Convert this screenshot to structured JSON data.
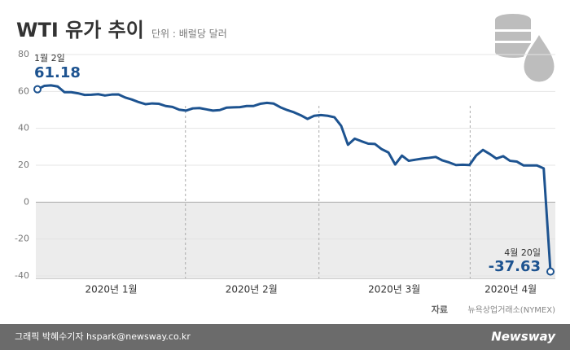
{
  "chart_data": {
    "type": "line",
    "title": "WTI 유가 추이",
    "subtitle": "단위 : 배럴당 달러",
    "x_labels": [
      "2020년 1월",
      "2020년 2월",
      "2020년 3월",
      "2020년 4월"
    ],
    "values": [
      61.18,
      63.0,
      63.3,
      62.7,
      59.6,
      59.6,
      59.0,
      58.1,
      58.2,
      58.5,
      57.8,
      58.3,
      58.4,
      56.7,
      55.6,
      54.2,
      53.1,
      53.5,
      53.3,
      52.1,
      51.6,
      50.1,
      49.6,
      50.8,
      51.0,
      50.3,
      49.6,
      49.9,
      51.2,
      51.4,
      51.5,
      52.1,
      52.1,
      53.3,
      53.8,
      53.4,
      51.4,
      49.9,
      48.7,
      47.1,
      45.1,
      46.8,
      47.2,
      46.8,
      46.0,
      41.3,
      31.1,
      34.4,
      33.0,
      31.7,
      31.5,
      28.7,
      26.9,
      20.4,
      25.2,
      22.4,
      23.0,
      23.6,
      24.0,
      24.5,
      22.6,
      21.5,
      20.1,
      20.3,
      20.1,
      25.3,
      28.3,
      26.1,
      23.6,
      24.9,
      22.4,
      22.0,
      19.9,
      19.9,
      19.9,
      18.3,
      -37.63
    ],
    "start_label": "1월 2일",
    "end_label": "4월 20일",
    "color": "#1d5390",
    "ylim": [
      -40,
      80
    ],
    "yticks": [
      -40,
      -20,
      0,
      20,
      40,
      60,
      80
    ],
    "grid": true,
    "source_title": "자료",
    "source": "뉴욕상업거래소(NYMEX)"
  },
  "footer": {
    "credit": "그래픽 박혜수기자 hspark@newsway.co.kr",
    "brand": "Newsway"
  }
}
